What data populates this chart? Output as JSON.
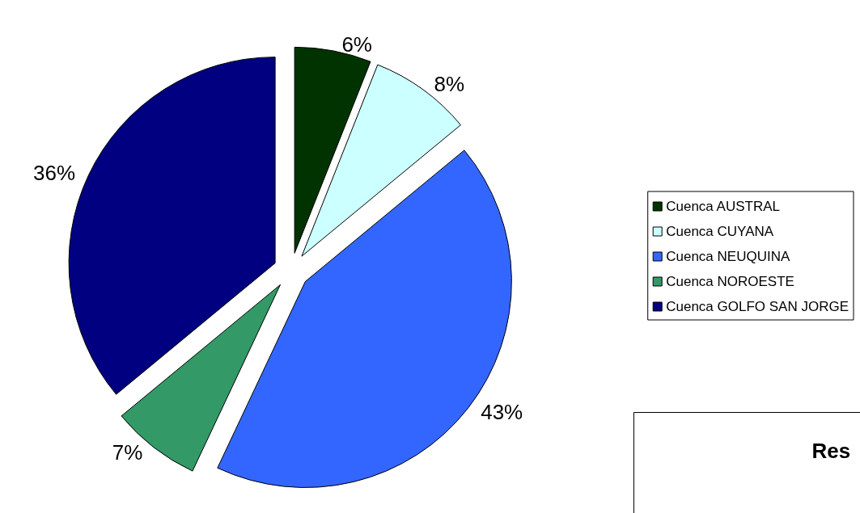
{
  "chart_data": {
    "type": "pie",
    "categories": [
      "Cuenca AUSTRAL",
      "Cuenca CUYANA",
      "Cuenca NEUQUINA",
      "Cuenca NOROESTE",
      "Cuenca GOLFO SAN JORGE"
    ],
    "values": [
      6,
      8,
      43,
      7,
      36
    ],
    "value_labels": [
      "6%",
      "8%",
      "43%",
      "7%",
      "36%"
    ],
    "colors": [
      "#003300",
      "#ccffff",
      "#3366ff",
      "#339966",
      "#000080"
    ],
    "legend": "right",
    "annotations": [
      "Res"
    ]
  }
}
